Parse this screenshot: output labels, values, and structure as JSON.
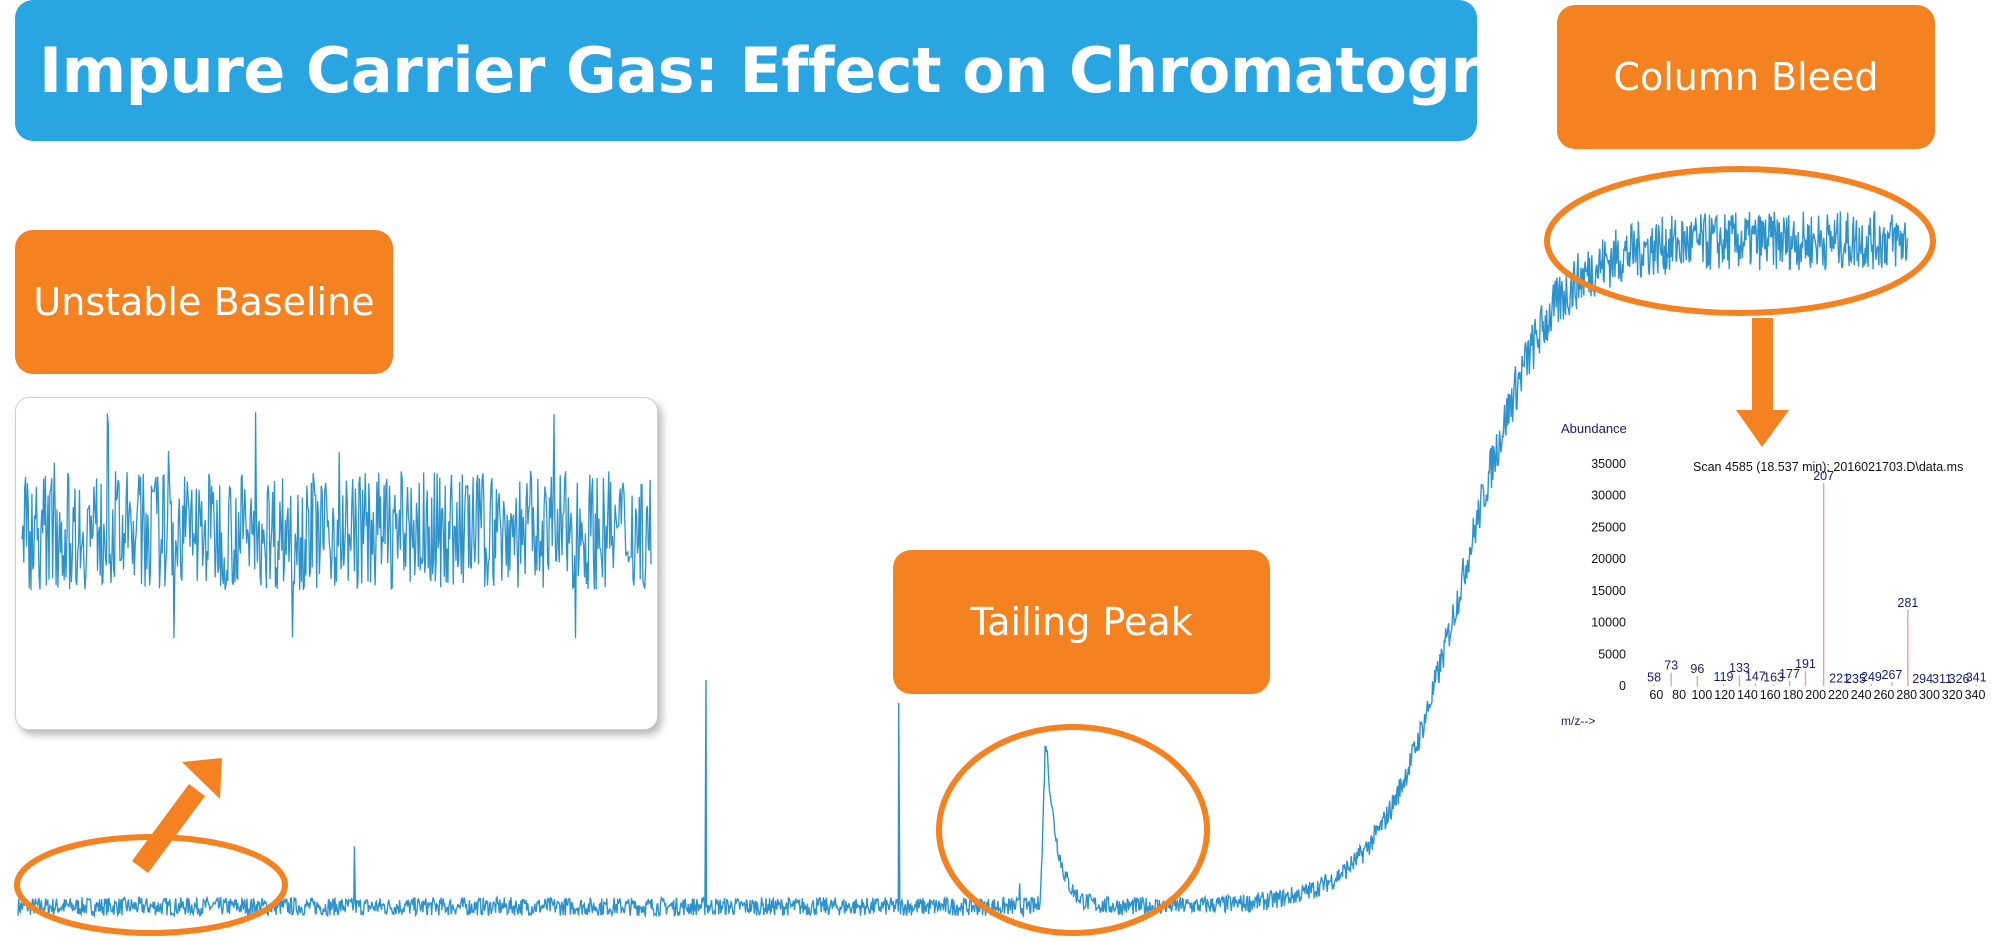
{
  "title": "Impure Carrier Gas: Effect on Chromatography",
  "callouts": {
    "column_bleed": "Column Bleed",
    "unstable_baseline": "Unstable Baseline",
    "tailing_peak": "Tailing Peak"
  },
  "colors": {
    "banner": "#29a6e2",
    "callout": "#f58220",
    "trace": "#2e93cc",
    "ms_label": "#1a1a7a",
    "ms_peak": "#e8a0a0"
  },
  "chart_data": [
    {
      "type": "line",
      "description_role": "chromatogram",
      "title": "",
      "xlabel": "",
      "ylabel": "",
      "grid": false,
      "axes_visible": false,
      "baseline_level": 0.02,
      "noise_amplitude": 0.01,
      "spikes": [
        {
          "x": 0.178,
          "y": 0.085
        },
        {
          "x": 0.364,
          "y": 0.265
        },
        {
          "x": 0.466,
          "y": 0.24
        },
        {
          "x": 0.53,
          "y": 0.045
        },
        {
          "x": 0.544,
          "y": 0.18,
          "tailing": true
        }
      ],
      "rise": {
        "midpoint": 0.765,
        "plateau": 0.74
      },
      "x_range": [
        0,
        1
      ],
      "y_range": [
        0,
        1
      ]
    },
    {
      "type": "line",
      "description_role": "zoomed baseline noise",
      "title": "",
      "grid": false,
      "axes_visible": false,
      "mean": 0.6,
      "amplitude": 0.18,
      "y_range": [
        0,
        1
      ]
    },
    {
      "type": "bar",
      "description_role": "mass spectrum",
      "title": "Scan 4585 (18.537 min): 2016021703.D\\data.ms",
      "ylabel": "Abundance",
      "xlabel": "m/z-->",
      "y_ticks": [
        0,
        5000,
        10000,
        15000,
        20000,
        25000,
        30000,
        35000
      ],
      "ylim": [
        0,
        35000
      ],
      "x_ticks": [
        60,
        80,
        100,
        120,
        140,
        160,
        180,
        200,
        220,
        240,
        260,
        280,
        300,
        320,
        340
      ],
      "xlim": [
        50,
        340
      ],
      "peaks": [
        {
          "mz": 58,
          "abundance": 200,
          "label": "58"
        },
        {
          "mz": 73,
          "abundance": 2100,
          "label": "73"
        },
        {
          "mz": 96,
          "abundance": 1600,
          "label": "96"
        },
        {
          "mz": 119,
          "abundance": 300,
          "label": "119"
        },
        {
          "mz": 133,
          "abundance": 1700,
          "label": "133"
        },
        {
          "mz": 147,
          "abundance": 400,
          "label": "147"
        },
        {
          "mz": 163,
          "abundance": 200,
          "label": "163"
        },
        {
          "mz": 177,
          "abundance": 800,
          "label": "177"
        },
        {
          "mz": 191,
          "abundance": 2400,
          "label": "191"
        },
        {
          "mz": 207,
          "abundance": 32000,
          "label": "207"
        },
        {
          "mz": 221,
          "abundance": 100,
          "label": "221"
        },
        {
          "mz": 235,
          "abundance": 0,
          "label": "235"
        },
        {
          "mz": 249,
          "abundance": 300,
          "label": "249"
        },
        {
          "mz": 267,
          "abundance": 600,
          "label": "267"
        },
        {
          "mz": 281,
          "abundance": 12000,
          "label": "281"
        },
        {
          "mz": 294,
          "abundance": 0,
          "label": "294"
        },
        {
          "mz": 311,
          "abundance": 0,
          "label": "311"
        },
        {
          "mz": 326,
          "abundance": 0,
          "label": "326"
        },
        {
          "mz": 341,
          "abundance": 200,
          "label": "341"
        }
      ]
    }
  ]
}
